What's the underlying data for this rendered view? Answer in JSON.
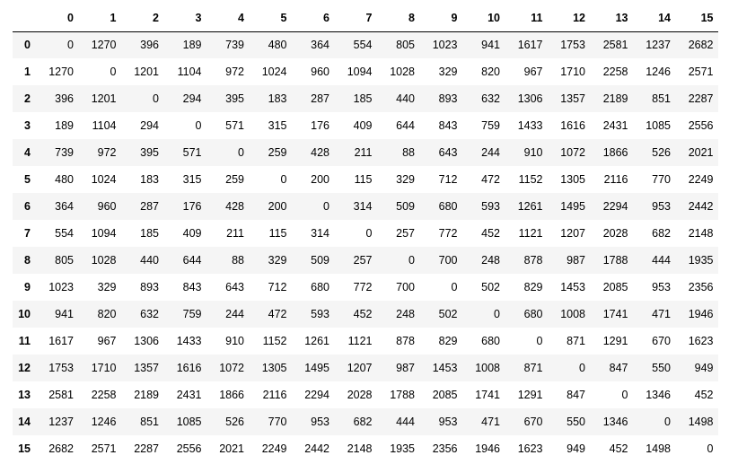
{
  "table": {
    "index_header": "",
    "columns": [
      "0",
      "1",
      "2",
      "3",
      "4",
      "5",
      "6",
      "7",
      "8",
      "9",
      "10",
      "11",
      "12",
      "13",
      "14",
      "15"
    ],
    "rows": [
      {
        "index": "0",
        "values": [
          "0",
          "1270",
          "396",
          "189",
          "739",
          "480",
          "364",
          "554",
          "805",
          "1023",
          "941",
          "1617",
          "1753",
          "2581",
          "1237",
          "2682"
        ]
      },
      {
        "index": "1",
        "values": [
          "1270",
          "0",
          "1201",
          "1104",
          "972",
          "1024",
          "960",
          "1094",
          "1028",
          "329",
          "820",
          "967",
          "1710",
          "2258",
          "1246",
          "2571"
        ]
      },
      {
        "index": "2",
        "values": [
          "396",
          "1201",
          "0",
          "294",
          "395",
          "183",
          "287",
          "185",
          "440",
          "893",
          "632",
          "1306",
          "1357",
          "2189",
          "851",
          "2287"
        ]
      },
      {
        "index": "3",
        "values": [
          "189",
          "1104",
          "294",
          "0",
          "571",
          "315",
          "176",
          "409",
          "644",
          "843",
          "759",
          "1433",
          "1616",
          "2431",
          "1085",
          "2556"
        ]
      },
      {
        "index": "4",
        "values": [
          "739",
          "972",
          "395",
          "571",
          "0",
          "259",
          "428",
          "211",
          "88",
          "643",
          "244",
          "910",
          "1072",
          "1866",
          "526",
          "2021"
        ]
      },
      {
        "index": "5",
        "values": [
          "480",
          "1024",
          "183",
          "315",
          "259",
          "0",
          "200",
          "115",
          "329",
          "712",
          "472",
          "1152",
          "1305",
          "2116",
          "770",
          "2249"
        ]
      },
      {
        "index": "6",
        "values": [
          "364",
          "960",
          "287",
          "176",
          "428",
          "200",
          "0",
          "314",
          "509",
          "680",
          "593",
          "1261",
          "1495",
          "2294",
          "953",
          "2442"
        ]
      },
      {
        "index": "7",
        "values": [
          "554",
          "1094",
          "185",
          "409",
          "211",
          "115",
          "314",
          "0",
          "257",
          "772",
          "452",
          "1121",
          "1207",
          "2028",
          "682",
          "2148"
        ]
      },
      {
        "index": "8",
        "values": [
          "805",
          "1028",
          "440",
          "644",
          "88",
          "329",
          "509",
          "257",
          "0",
          "700",
          "248",
          "878",
          "987",
          "1788",
          "444",
          "1935"
        ]
      },
      {
        "index": "9",
        "values": [
          "1023",
          "329",
          "893",
          "843",
          "643",
          "712",
          "680",
          "772",
          "700",
          "0",
          "502",
          "829",
          "1453",
          "2085",
          "953",
          "2356"
        ]
      },
      {
        "index": "10",
        "values": [
          "941",
          "820",
          "632",
          "759",
          "244",
          "472",
          "593",
          "452",
          "248",
          "502",
          "0",
          "680",
          "1008",
          "1741",
          "471",
          "1946"
        ]
      },
      {
        "index": "11",
        "values": [
          "1617",
          "967",
          "1306",
          "1433",
          "910",
          "1152",
          "1261",
          "1121",
          "878",
          "829",
          "680",
          "0",
          "871",
          "1291",
          "670",
          "1623"
        ]
      },
      {
        "index": "12",
        "values": [
          "1753",
          "1710",
          "1357",
          "1616",
          "1072",
          "1305",
          "1495",
          "1207",
          "987",
          "1453",
          "1008",
          "871",
          "0",
          "847",
          "550",
          "949"
        ]
      },
      {
        "index": "13",
        "values": [
          "2581",
          "2258",
          "2189",
          "2431",
          "1866",
          "2116",
          "2294",
          "2028",
          "1788",
          "2085",
          "1741",
          "1291",
          "847",
          "0",
          "1346",
          "452"
        ]
      },
      {
        "index": "14",
        "values": [
          "1237",
          "1246",
          "851",
          "1085",
          "526",
          "770",
          "953",
          "682",
          "444",
          "953",
          "471",
          "670",
          "550",
          "1346",
          "0",
          "1498"
        ]
      },
      {
        "index": "15",
        "values": [
          "2682",
          "2571",
          "2287",
          "2556",
          "2021",
          "2249",
          "2442",
          "2148",
          "1935",
          "2356",
          "1946",
          "1623",
          "949",
          "452",
          "1498",
          "0"
        ]
      }
    ]
  }
}
